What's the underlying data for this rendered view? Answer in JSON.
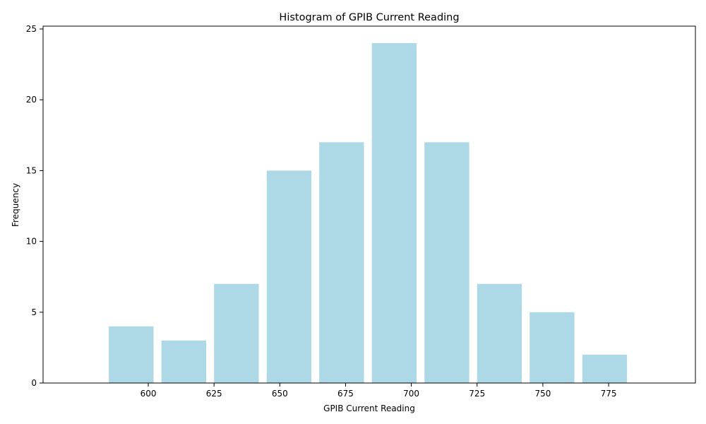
{
  "chart_data": {
    "type": "bar",
    "title": "Histogram of GPIB Current Reading",
    "xlabel": "GPIB Current Reading",
    "ylabel": "Frequency",
    "bins": [
      {
        "start": 585,
        "end": 602,
        "count": 4
      },
      {
        "start": 605,
        "end": 622,
        "count": 3
      },
      {
        "start": 625,
        "end": 642,
        "count": 7
      },
      {
        "start": 645,
        "end": 662,
        "count": 15
      },
      {
        "start": 665,
        "end": 682,
        "count": 17
      },
      {
        "start": 685,
        "end": 702,
        "count": 24
      },
      {
        "start": 705,
        "end": 722,
        "count": 17
      },
      {
        "start": 725,
        "end": 742,
        "count": 7
      },
      {
        "start": 745,
        "end": 762,
        "count": 5
      },
      {
        "start": 765,
        "end": 782,
        "count": 2
      }
    ],
    "xlim": [
      560,
      808
    ],
    "ylim": [
      0,
      25.2
    ],
    "xticks": [
      600,
      625,
      650,
      675,
      700,
      725,
      750,
      775
    ],
    "yticks": [
      0,
      5,
      10,
      15,
      20,
      25
    ],
    "bar_color": "#add8e6",
    "grid": false,
    "legend": "none"
  }
}
